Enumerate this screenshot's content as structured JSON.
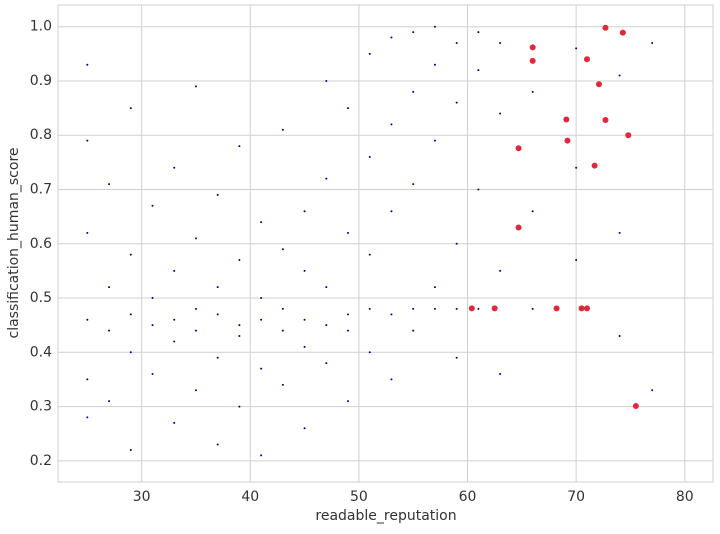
{
  "chart_data": {
    "type": "scatter",
    "x_label": "readable_reputation",
    "y_label": "classification_human_score",
    "xlim": [
      22.3,
      82.6
    ],
    "ylim": [
      0.161,
      1.04
    ],
    "xticks": [
      30,
      40,
      50,
      60,
      70,
      80
    ],
    "yticks": [
      0.2,
      0.3,
      0.4,
      0.5,
      0.6,
      0.7,
      0.8,
      0.9,
      {
        "value": 1.0,
        "label": "1.0"
      }
    ],
    "grid": true,
    "series": [
      {
        "color": "#00008b",
        "x": [
          25,
          25,
          25,
          25,
          25,
          25,
          27,
          27,
          27,
          27,
          29,
          29,
          29,
          29,
          29,
          31,
          31,
          31,
          31,
          33,
          33,
          33,
          33,
          33,
          35,
          35,
          35,
          35,
          35,
          37,
          37,
          37,
          37,
          37,
          39,
          39,
          39,
          39,
          39,
          41,
          41,
          41,
          41,
          41,
          43,
          43,
          43,
          43,
          43,
          45,
          45,
          45,
          45,
          45,
          47,
          47,
          47,
          47,
          47,
          49,
          49,
          49,
          49,
          49,
          51,
          51,
          51,
          51,
          51,
          53,
          53,
          53,
          53,
          53,
          55,
          55,
          55,
          55,
          55,
          57,
          57,
          57,
          57,
          57,
          59,
          59,
          59,
          59,
          59,
          61,
          61,
          61,
          61,
          63,
          63,
          63,
          63,
          66,
          66,
          66,
          70,
          70,
          70,
          74,
          74,
          74,
          77,
          77
        ],
        "values": [
          0.46,
          0.28,
          0.62,
          0.35,
          0.79,
          0.93,
          0.44,
          0.52,
          0.31,
          0.71,
          0.47,
          0.4,
          0.58,
          0.22,
          0.85,
          0.45,
          0.36,
          0.67,
          0.5,
          0.46,
          0.27,
          0.55,
          0.74,
          0.42,
          0.44,
          0.33,
          0.61,
          0.48,
          0.89,
          0.47,
          0.23,
          0.52,
          0.39,
          0.69,
          0.45,
          0.3,
          0.57,
          0.43,
          0.78,
          0.46,
          0.21,
          0.64,
          0.5,
          0.37,
          0.44,
          0.34,
          0.59,
          0.81,
          0.48,
          0.46,
          0.26,
          0.66,
          0.41,
          0.55,
          0.45,
          0.38,
          0.72,
          0.52,
          0.9,
          0.47,
          0.31,
          0.62,
          0.85,
          0.44,
          0.48,
          0.4,
          0.76,
          0.95,
          0.58,
          0.47,
          0.35,
          0.82,
          0.98,
          0.66,
          0.48,
          0.44,
          0.88,
          0.99,
          0.71,
          0.48,
          0.52,
          0.93,
          1.0,
          0.79,
          0.48,
          0.6,
          0.97,
          0.86,
          0.39,
          0.48,
          0.7,
          0.99,
          0.92,
          0.55,
          0.84,
          0.97,
          0.36,
          0.48,
          0.66,
          0.88,
          0.57,
          0.74,
          0.96,
          0.43,
          0.62,
          0.91,
          0.33,
          0.97
        ]
      },
      {
        "color": "#e0283c",
        "x": [
          66.0,
          66.0,
          72.7,
          74.3,
          71.0,
          72.1,
          69.1,
          72.7,
          74.8,
          69.2,
          64.7,
          71.7,
          64.7,
          60.4,
          62.5,
          68.2,
          70.5,
          71.0,
          75.5
        ],
        "values": [
          0.962,
          0.937,
          0.998,
          0.989,
          0.94,
          0.894,
          0.829,
          0.828,
          0.8,
          0.79,
          0.776,
          0.744,
          0.63,
          0.481,
          0.481,
          0.481,
          0.481,
          0.481,
          0.301
        ]
      }
    ]
  }
}
